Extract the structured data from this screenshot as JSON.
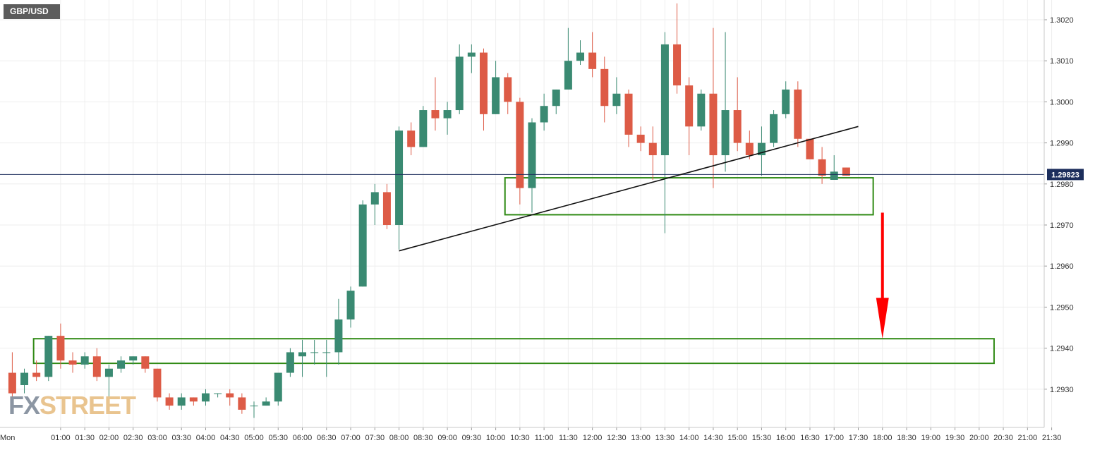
{
  "symbol": "GBP/USD",
  "watermark": {
    "part1": "FX",
    "part2": "STREET"
  },
  "colors": {
    "up": "#3a8a72",
    "down": "#dd5b46",
    "zone": "#2f8a14",
    "trendline": "#111111",
    "arrow": "#ff0000",
    "price_line": "#1c2e5c",
    "price_badge": "#1c2e5c",
    "grid": "#eeeeee"
  },
  "chart_data": {
    "type": "candlestick",
    "grid": true,
    "ylim": [
      1.2923,
      1.3024
    ],
    "x_day_label": "Mon",
    "x_ticks": [
      "01:00",
      "01:30",
      "02:00",
      "02:30",
      "03:00",
      "03:30",
      "04:00",
      "04:30",
      "05:00",
      "05:30",
      "06:00",
      "06:30",
      "07:00",
      "07:30",
      "08:00",
      "08:30",
      "09:00",
      "09:30",
      "10:00",
      "10:30",
      "11:00",
      "11:30",
      "12:00",
      "12:30",
      "13:00",
      "13:30",
      "14:00",
      "14:30",
      "15:00",
      "15:30",
      "16:00",
      "16:30",
      "17:00",
      "17:30",
      "18:00",
      "18:30",
      "19:00",
      "19:30",
      "20:00",
      "20:30",
      "21:00",
      "21:30"
    ],
    "y_ticks": [
      "1.3020",
      "1.3010",
      "1.3000",
      "1.2990",
      "1.2980",
      "1.2970",
      "1.2960",
      "1.2950",
      "1.2940",
      "1.2930"
    ],
    "current_price": 1.29823,
    "current_price_label": "1.29823",
    "candles": [
      {
        "t": "00:00",
        "o": 1.2934,
        "h": 1.2939,
        "l": 1.2928,
        "c": 1.2929
      },
      {
        "t": "00:15",
        "o": 1.2931,
        "h": 1.2935,
        "l": 1.2929,
        "c": 1.2934
      },
      {
        "t": "00:30",
        "o": 1.2934,
        "h": 1.2937,
        "l": 1.2932,
        "c": 1.2933
      },
      {
        "t": "00:45",
        "o": 1.2933,
        "h": 1.2943,
        "l": 1.2932,
        "c": 1.2943
      },
      {
        "t": "01:00",
        "o": 1.2943,
        "h": 1.2946,
        "l": 1.2935,
        "c": 1.2937
      },
      {
        "t": "01:15",
        "o": 1.2937,
        "h": 1.2939,
        "l": 1.2934,
        "c": 1.2936
      },
      {
        "t": "01:30",
        "o": 1.2936,
        "h": 1.2939,
        "l": 1.2935,
        "c": 1.2938
      },
      {
        "t": "01:45",
        "o": 1.2938,
        "h": 1.294,
        "l": 1.2932,
        "c": 1.2933
      },
      {
        "t": "02:00",
        "o": 1.2933,
        "h": 1.2936,
        "l": 1.2925,
        "c": 1.2935
      },
      {
        "t": "02:15",
        "o": 1.2935,
        "h": 1.2938,
        "l": 1.2934,
        "c": 1.2937
      },
      {
        "t": "02:30",
        "o": 1.2937,
        "h": 1.2938,
        "l": 1.2936,
        "c": 1.2938
      },
      {
        "t": "02:45",
        "o": 1.2938,
        "h": 1.2938,
        "l": 1.2934,
        "c": 1.2935
      },
      {
        "t": "03:00",
        "o": 1.2935,
        "h": 1.2935,
        "l": 1.2927,
        "c": 1.2928
      },
      {
        "t": "03:15",
        "o": 1.2928,
        "h": 1.2929,
        "l": 1.2925,
        "c": 1.2926
      },
      {
        "t": "03:30",
        "o": 1.2926,
        "h": 1.2929,
        "l": 1.2925,
        "c": 1.2928
      },
      {
        "t": "03:45",
        "o": 1.2928,
        "h": 1.2928,
        "l": 1.2926,
        "c": 1.2927
      },
      {
        "t": "04:00",
        "o": 1.2927,
        "h": 1.293,
        "l": 1.2926,
        "c": 1.2929
      },
      {
        "t": "04:15",
        "o": 1.2929,
        "h": 1.2929,
        "l": 1.2928,
        "c": 1.2929
      },
      {
        "t": "04:30",
        "o": 1.2929,
        "h": 1.293,
        "l": 1.2926,
        "c": 1.2928
      },
      {
        "t": "04:45",
        "o": 1.2928,
        "h": 1.2929,
        "l": 1.2924,
        "c": 1.2925
      },
      {
        "t": "05:00",
        "o": 1.2926,
        "h": 1.2927,
        "l": 1.2923,
        "c": 1.2926
      },
      {
        "t": "05:15",
        "o": 1.2926,
        "h": 1.2928,
        "l": 1.2926,
        "c": 1.2927
      },
      {
        "t": "05:30",
        "o": 1.2927,
        "h": 1.2934,
        "l": 1.2926,
        "c": 1.2934
      },
      {
        "t": "05:45",
        "o": 1.2934,
        "h": 1.294,
        "l": 1.2933,
        "c": 1.2939
      },
      {
        "t": "06:00",
        "o": 1.2938,
        "h": 1.2942,
        "l": 1.2933,
        "c": 1.2939
      },
      {
        "t": "06:15",
        "o": 1.2939,
        "h": 1.2942,
        "l": 1.2936,
        "c": 1.2939
      },
      {
        "t": "06:30",
        "o": 1.2939,
        "h": 1.2942,
        "l": 1.2933,
        "c": 1.2939
      },
      {
        "t": "06:45",
        "o": 1.2939,
        "h": 1.2952,
        "l": 1.2936,
        "c": 1.2947
      },
      {
        "t": "07:00",
        "o": 1.2947,
        "h": 1.2955,
        "l": 1.2945,
        "c": 1.2954
      },
      {
        "t": "07:15",
        "o": 1.2955,
        "h": 1.2976,
        "l": 1.2955,
        "c": 1.2975
      },
      {
        "t": "07:30",
        "o": 1.2975,
        "h": 1.298,
        "l": 1.297,
        "c": 1.2978
      },
      {
        "t": "07:45",
        "o": 1.2978,
        "h": 1.298,
        "l": 1.2969,
        "c": 1.297
      },
      {
        "t": "08:00",
        "o": 1.297,
        "h": 1.2994,
        "l": 1.2964,
        "c": 1.2993
      },
      {
        "t": "08:15",
        "o": 1.2993,
        "h": 1.2995,
        "l": 1.2987,
        "c": 1.2989
      },
      {
        "t": "08:30",
        "o": 1.2989,
        "h": 1.2999,
        "l": 1.2989,
        "c": 1.2998
      },
      {
        "t": "08:45",
        "o": 1.2998,
        "h": 1.3006,
        "l": 1.2993,
        "c": 1.2996
      },
      {
        "t": "09:00",
        "o": 1.2996,
        "h": 1.3,
        "l": 1.2992,
        "c": 1.2998
      },
      {
        "t": "09:15",
        "o": 1.2998,
        "h": 1.3014,
        "l": 1.2997,
        "c": 1.3011
      },
      {
        "t": "09:30",
        "o": 1.3011,
        "h": 1.3014,
        "l": 1.3007,
        "c": 1.3012
      },
      {
        "t": "09:45",
        "o": 1.3012,
        "h": 1.3013,
        "l": 1.2993,
        "c": 1.2997
      },
      {
        "t": "10:00",
        "o": 1.2997,
        "h": 1.301,
        "l": 1.2997,
        "c": 1.3006
      },
      {
        "t": "10:15",
        "o": 1.3006,
        "h": 1.3007,
        "l": 1.2997,
        "c": 1.3
      },
      {
        "t": "10:30",
        "o": 1.3,
        "h": 1.3001,
        "l": 1.2975,
        "c": 1.2979
      },
      {
        "t": "10:45",
        "o": 1.2979,
        "h": 1.2996,
        "l": 1.2973,
        "c": 1.2995
      },
      {
        "t": "11:00",
        "o": 1.2995,
        "h": 1.3002,
        "l": 1.2993,
        "c": 1.2999
      },
      {
        "t": "11:15",
        "o": 1.2999,
        "h": 1.3003,
        "l": 1.2997,
        "c": 1.3003
      },
      {
        "t": "11:30",
        "o": 1.3003,
        "h": 1.3018,
        "l": 1.3003,
        "c": 1.301
      },
      {
        "t": "11:45",
        "o": 1.301,
        "h": 1.3015,
        "l": 1.3009,
        "c": 1.3012
      },
      {
        "t": "12:00",
        "o": 1.3012,
        "h": 1.3017,
        "l": 1.3006,
        "c": 1.3008
      },
      {
        "t": "12:15",
        "o": 1.3008,
        "h": 1.3011,
        "l": 1.2995,
        "c": 1.2999
      },
      {
        "t": "12:30",
        "o": 1.2999,
        "h": 1.3006,
        "l": 1.2997,
        "c": 1.3002
      },
      {
        "t": "12:45",
        "o": 1.3002,
        "h": 1.3003,
        "l": 1.2989,
        "c": 1.2992
      },
      {
        "t": "13:00",
        "o": 1.2992,
        "h": 1.2994,
        "l": 1.2988,
        "c": 1.299
      },
      {
        "t": "13:15",
        "o": 1.299,
        "h": 1.2994,
        "l": 1.2981,
        "c": 1.2987
      },
      {
        "t": "13:30",
        "o": 1.2987,
        "h": 1.3017,
        "l": 1.2968,
        "c": 1.3014
      },
      {
        "t": "13:45",
        "o": 1.3014,
        "h": 1.3024,
        "l": 1.3002,
        "c": 1.3004
      },
      {
        "t": "14:00",
        "o": 1.3004,
        "h": 1.3006,
        "l": 1.2987,
        "c": 1.2994
      },
      {
        "t": "14:15",
        "o": 1.2994,
        "h": 1.3003,
        "l": 1.2993,
        "c": 1.3002
      },
      {
        "t": "14:30",
        "o": 1.3002,
        "h": 1.3018,
        "l": 1.2979,
        "c": 1.2987
      },
      {
        "t": "14:45",
        "o": 1.2987,
        "h": 1.3017,
        "l": 1.2983,
        "c": 1.2998
      },
      {
        "t": "15:00",
        "o": 1.2998,
        "h": 1.3006,
        "l": 1.2988,
        "c": 1.299
      },
      {
        "t": "15:15",
        "o": 1.299,
        "h": 1.2993,
        "l": 1.2986,
        "c": 1.2987
      },
      {
        "t": "15:30",
        "o": 1.2987,
        "h": 1.2994,
        "l": 1.2982,
        "c": 1.299
      },
      {
        "t": "15:45",
        "o": 1.299,
        "h": 1.2998,
        "l": 1.2989,
        "c": 1.2997
      },
      {
        "t": "16:00",
        "o": 1.2997,
        "h": 1.3005,
        "l": 1.2996,
        "c": 1.3003
      },
      {
        "t": "16:15",
        "o": 1.3003,
        "h": 1.3005,
        "l": 1.2989,
        "c": 1.2991
      },
      {
        "t": "16:30",
        "o": 1.2991,
        "h": 1.2991,
        "l": 1.2986,
        "c": 1.2986
      },
      {
        "t": "16:45",
        "o": 1.2986,
        "h": 1.2989,
        "l": 1.298,
        "c": 1.2982
      },
      {
        "t": "17:00",
        "o": 1.2981,
        "h": 1.2987,
        "l": 1.2981,
        "c": 1.2983
      },
      {
        "t": "17:15",
        "o": 1.2984,
        "h": 1.2984,
        "l": 1.2982,
        "c": 1.2982
      }
    ],
    "annotations": {
      "upper_zone": {
        "t_start": "10:15",
        "t_end": "17:45",
        "p_high": 1.29815,
        "p_low": 1.29725
      },
      "lower_zone": {
        "t_start": "00:30",
        "t_end": "20:15",
        "p_high": 1.29423,
        "p_low": 1.29363
      },
      "trendline": {
        "t1": "08:00",
        "p1": 1.29637,
        "t2": "17:30",
        "p2": 1.2994
      },
      "arrow": {
        "t": "18:00",
        "p_from": 1.2973,
        "p_to": 1.29423
      }
    }
  }
}
